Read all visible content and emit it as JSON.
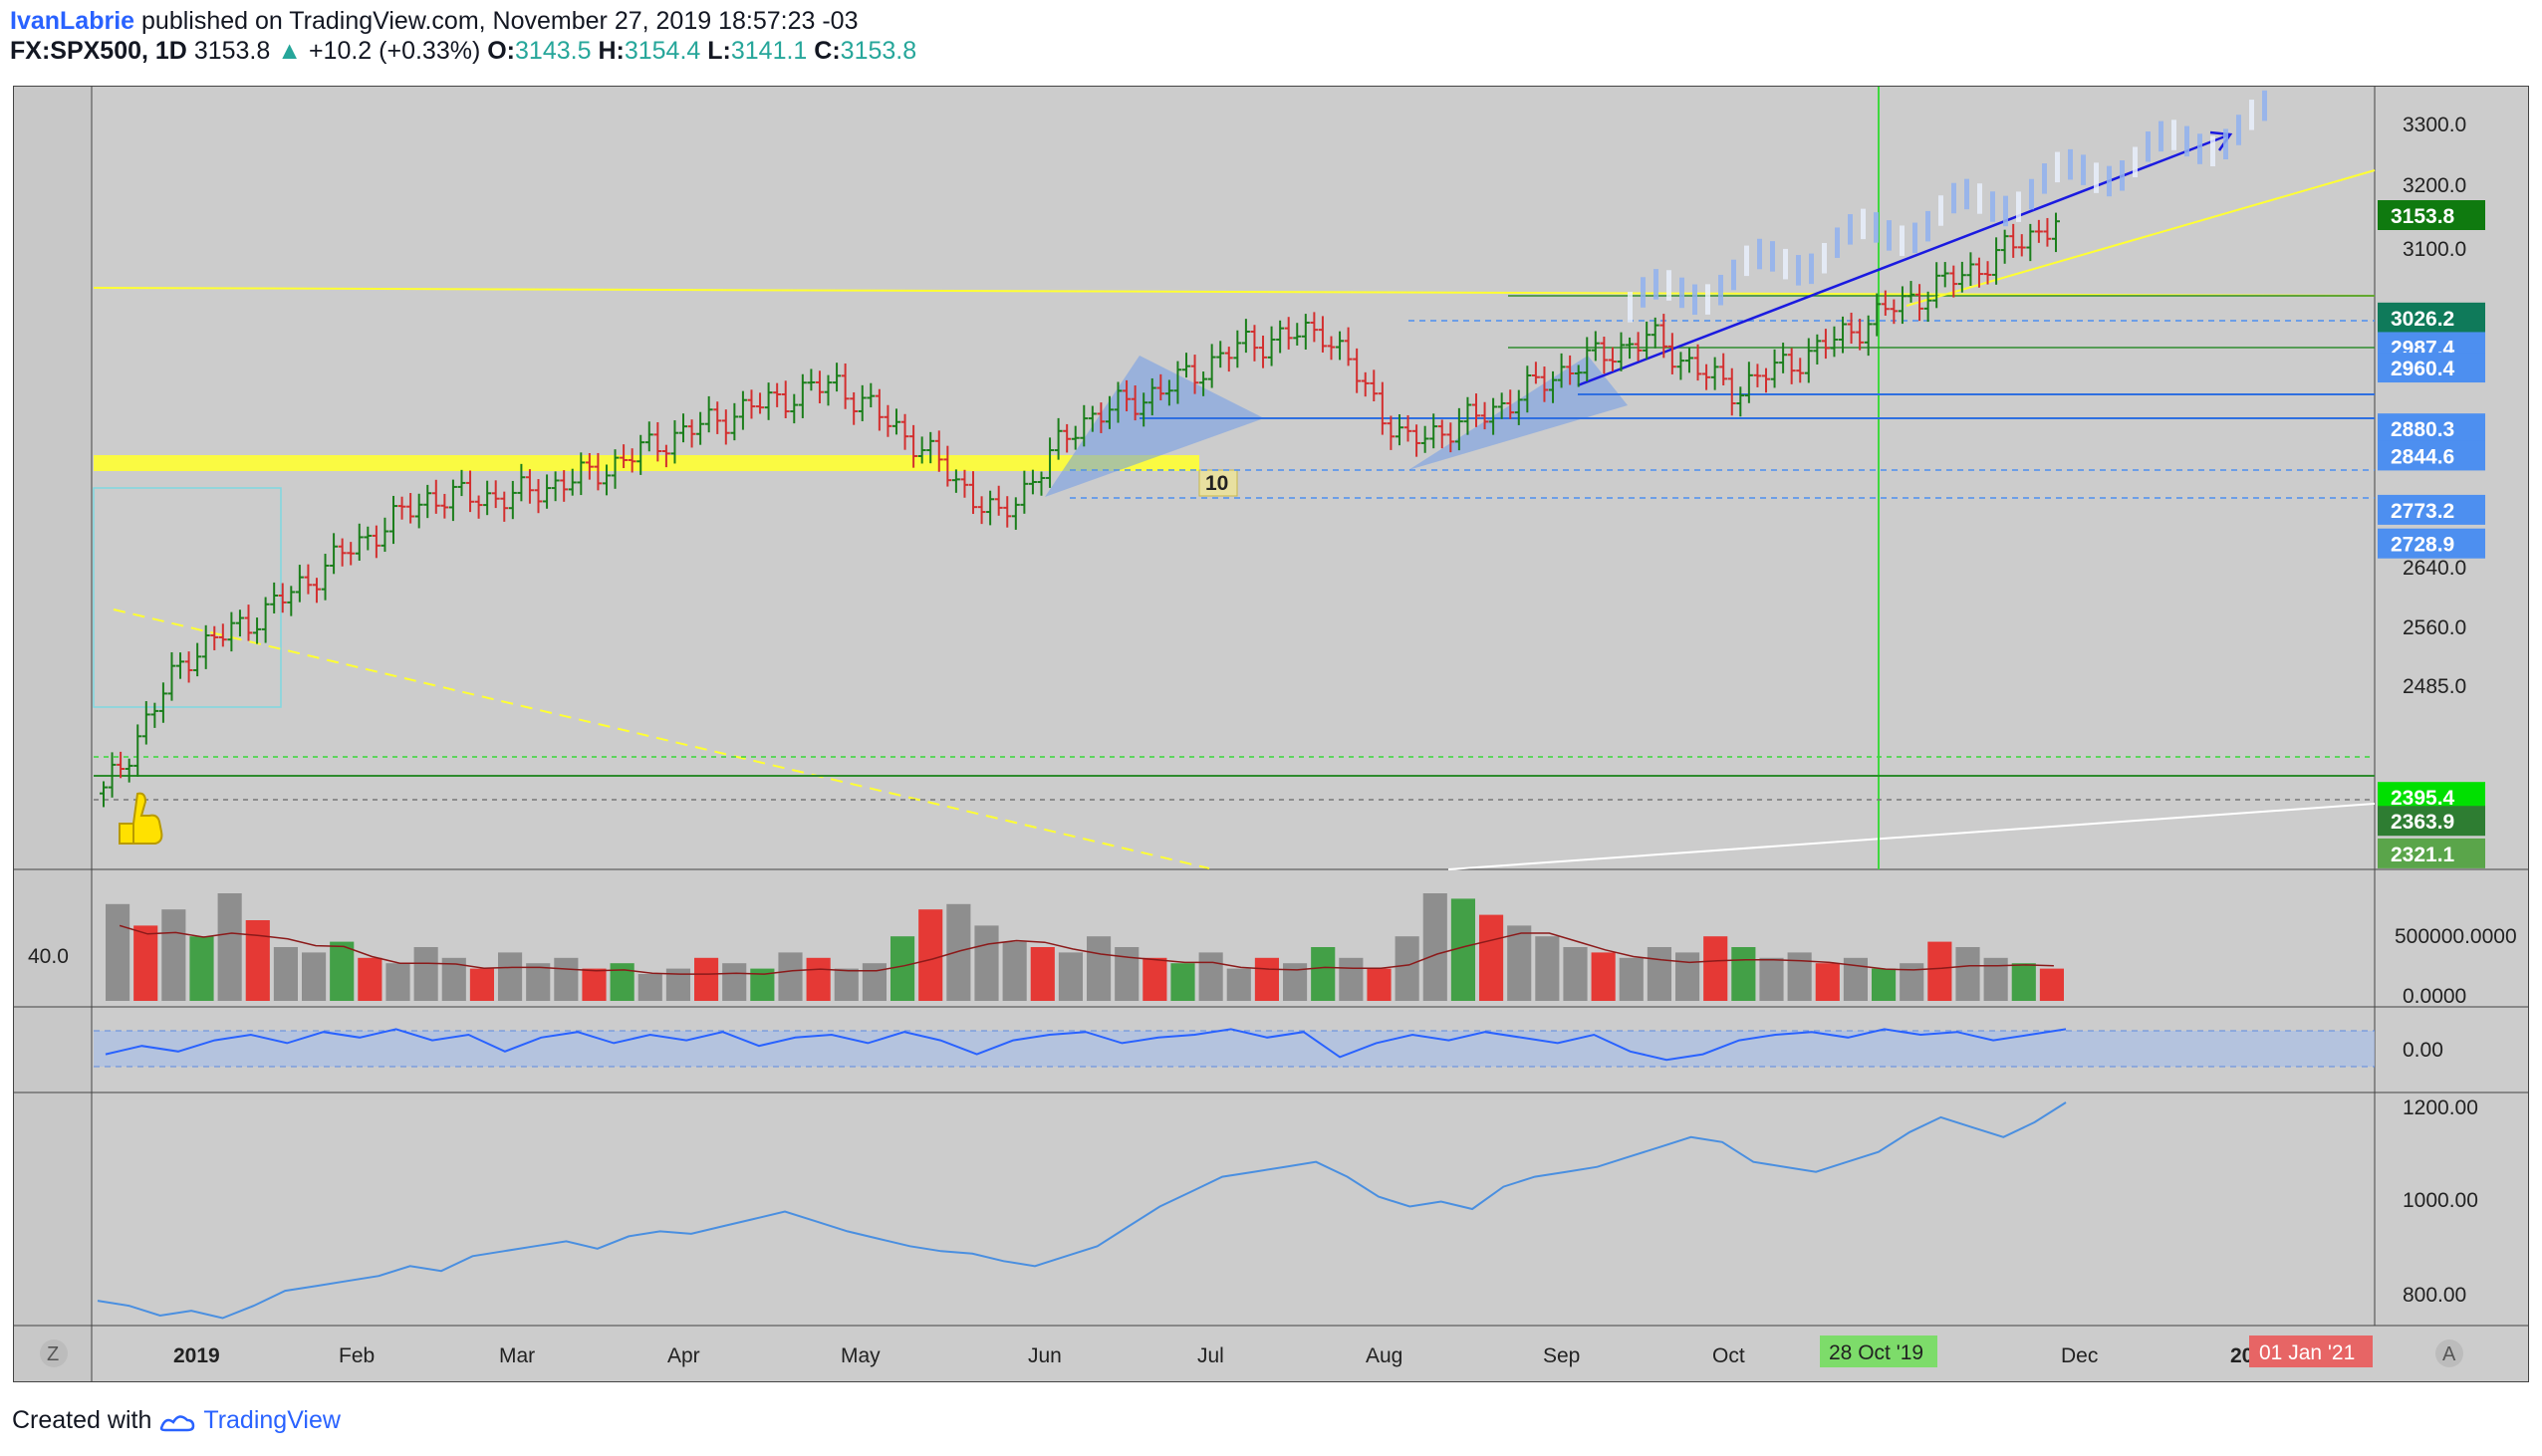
{
  "header": {
    "author": "IvanLabrie",
    "published_text": "published on TradingView.com, November 27, 2019 18:57:23 -03",
    "symbol": "FX:SPX500, 1D",
    "last": "3153.8",
    "change_arrow": "▲",
    "change": "+10.2 (+0.33%)",
    "o_label": "O:",
    "o_value": "3143.5",
    "h_label": "H:",
    "h_value": "3154.4",
    "l_label": "L:",
    "l_value": "3141.1",
    "c_label": "C:",
    "c_value": "3153.8"
  },
  "footer": {
    "created_with": "Created with",
    "brand": "TradingView"
  },
  "colors": {
    "background": "#cccccc",
    "bull_bar": "#1b7e1b",
    "bear_bar": "#d32f2f",
    "volume_red": "#e53935",
    "volume_green": "#43a047",
    "volume_gray": "#8e8e8e",
    "rsi_line": "#2962ff",
    "obv_line": "#4a8fe0",
    "yellow": "#ffff33",
    "price_badge": "#0f7a0f",
    "level_badge": "#4d8ff0"
  },
  "controls": {
    "left_button": "Z",
    "right_button": "A"
  },
  "chart_data": [
    {
      "type": "line",
      "title": "",
      "ylim": [
        2300,
        3330
      ],
      "y_ticks": [
        "3300.0",
        "3200.0",
        "3100.0",
        "2640.0",
        "2560.0",
        "2485.0"
      ],
      "time_labels": [
        "2019",
        "Feb",
        "Mar",
        "Apr",
        "May",
        "Jun",
        "Jul",
        "Aug",
        "Sep",
        "Oct",
        "Dec",
        "2020"
      ],
      "crosshair_date": "28 Oct '19",
      "future_date": "01 Jan '21",
      "current_price": "3153.8",
      "level_badges": [
        {
          "value": "3026.2",
          "color": "#0f7a5a"
        },
        {
          "value": "2987.4",
          "color": "#4d8ff0"
        },
        {
          "value": "2960.4",
          "color": "#4d8ff0"
        },
        {
          "value": "2880.3",
          "color": "#4d8ff0"
        },
        {
          "value": "2844.6",
          "color": "#4d8ff0"
        },
        {
          "value": "2773.2",
          "color": "#4d8ff0"
        },
        {
          "value": "2728.9",
          "color": "#4d8ff0"
        },
        {
          "value": "2395.4",
          "color": "#00e000"
        },
        {
          "value": "2363.9",
          "color": "#2e7d32"
        },
        {
          "value": "2321.1",
          "color": "#5aa54a"
        }
      ],
      "annotations": [
        "10"
      ],
      "series": [
        {
          "name": "",
          "x": [
            "2018-12-24",
            "2019-01-08",
            "2019-01-22",
            "2019-02-05",
            "2019-02-19",
            "2019-03-05",
            "2019-03-19",
            "2019-04-02",
            "2019-04-16",
            "2019-04-30",
            "2019-05-14",
            "2019-05-28",
            "2019-06-11",
            "2019-06-25",
            "2019-07-09",
            "2019-07-23",
            "2019-08-06",
            "2019-08-20",
            "2019-09-03",
            "2019-09-17",
            "2019-10-01",
            "2019-10-15",
            "2019-10-29",
            "2019-11-12",
            "2019-11-27"
          ],
          "values": [
            2400,
            2580,
            2640,
            2720,
            2790,
            2790,
            2820,
            2870,
            2910,
            2940,
            2860,
            2760,
            2890,
            2930,
            2990,
            3010,
            2860,
            2900,
            2960,
            3000,
            2930,
            2980,
            3040,
            3090,
            3153.8
          ]
        }
      ]
    },
    {
      "type": "bar",
      "title": "",
      "value_label": "40.0",
      "y_ticks": [
        "500000.0000",
        "0.0000"
      ],
      "series": [
        {
          "name": "",
          "values": [
            0.9,
            0.7,
            0.85,
            0.6,
            1.0,
            0.75,
            0.5,
            0.45,
            0.55,
            0.4,
            0.35,
            0.5,
            0.4,
            0.3,
            0.45,
            0.35,
            0.4,
            0.3,
            0.35,
            0.25,
            0.3,
            0.4,
            0.35,
            0.3,
            0.45,
            0.4,
            0.3,
            0.35,
            0.6,
            0.85,
            0.9,
            0.7,
            0.55,
            0.5,
            0.45,
            0.6,
            0.5,
            0.4,
            0.35,
            0.45,
            0.3,
            0.4,
            0.35,
            0.5,
            0.4,
            0.3,
            0.6,
            1.0,
            0.95,
            0.8,
            0.7,
            0.6,
            0.5,
            0.45,
            0.4,
            0.5,
            0.45,
            0.6,
            0.5,
            0.4,
            0.45,
            0.35,
            0.4,
            0.3,
            0.35,
            0.55,
            0.5,
            0.4,
            0.35,
            0.3
          ]
        }
      ]
    },
    {
      "type": "line",
      "title": "",
      "y_ticks": [
        "0.00"
      ],
      "series": [
        {
          "name": "",
          "values": [
            -0.2,
            0.1,
            -0.1,
            0.3,
            0.5,
            0.2,
            0.6,
            0.4,
            0.7,
            0.3,
            0.5,
            -0.1,
            0.4,
            0.6,
            0.2,
            0.5,
            0.3,
            0.6,
            0.1,
            0.4,
            0.5,
            0.2,
            0.6,
            0.3,
            -0.2,
            0.3,
            0.5,
            0.6,
            0.2,
            0.4,
            0.5,
            0.7,
            0.4,
            0.6,
            -0.3,
            0.2,
            0.5,
            0.3,
            0.6,
            0.4,
            0.2,
            0.5,
            -0.1,
            -0.4,
            -0.2,
            0.3,
            0.5,
            0.6,
            0.4,
            0.7,
            0.5,
            0.6,
            0.3,
            0.5,
            0.7
          ]
        }
      ]
    },
    {
      "type": "line",
      "title": "",
      "ylim": [
        760,
        1230
      ],
      "y_ticks": [
        "1200.00",
        "1000.00",
        "800.00"
      ],
      "series": [
        {
          "name": "",
          "values": [
            810,
            800,
            780,
            790,
            775,
            800,
            830,
            840,
            850,
            860,
            880,
            870,
            900,
            910,
            920,
            930,
            915,
            940,
            950,
            945,
            960,
            975,
            990,
            970,
            950,
            935,
            920,
            910,
            905,
            890,
            880,
            900,
            920,
            960,
            1000,
            1030,
            1060,
            1070,
            1080,
            1090,
            1060,
            1020,
            1000,
            1010,
            995,
            1040,
            1060,
            1070,
            1080,
            1100,
            1120,
            1140,
            1130,
            1090,
            1080,
            1070,
            1090,
            1110,
            1150,
            1180,
            1160,
            1140,
            1170,
            1210
          ]
        }
      ]
    }
  ]
}
